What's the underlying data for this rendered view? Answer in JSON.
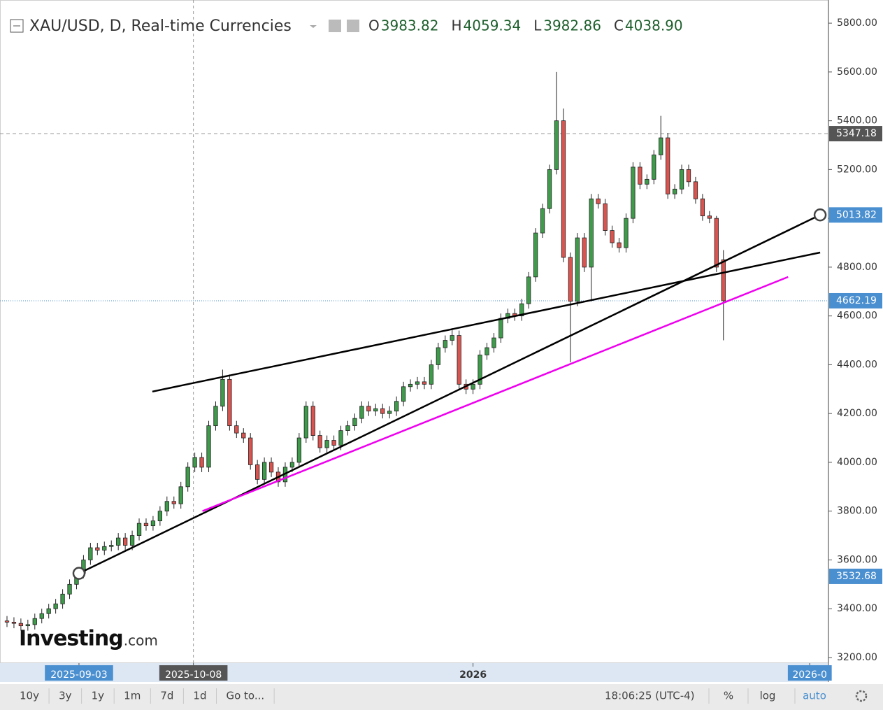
{
  "chart_data": {
    "type": "candlestick",
    "header": {
      "symbol": "XAU/USD, D, Real-time Currencies",
      "ohlc": [
        {
          "name": "O",
          "value": 3983.82
        },
        {
          "name": "H",
          "value": 4059.34
        },
        {
          "name": "L",
          "value": 3982.86
        },
        {
          "name": "C",
          "value": 4038.9,
          "label": "4038.90"
        }
      ]
    },
    "open": [
      3350,
      3345,
      3340,
      3330,
      3335,
      3360,
      3380,
      3400,
      3420,
      3460,
      3500,
      3545,
      3600,
      3650,
      3640,
      3655,
      3660,
      3690,
      3660,
      3700,
      3750,
      3740,
      3760,
      3800,
      3840,
      3830,
      3900,
      3980,
      4020,
      3980,
      4150,
      4230,
      4340,
      4150,
      4120,
      4100,
      3990,
      3930,
      4000,
      3960,
      3920,
      3980,
      4000,
      4100,
      4230,
      4110,
      4060,
      4090,
      4070,
      4130,
      4150,
      4180,
      4230,
      4210,
      4220,
      4200,
      4210,
      4250,
      4310,
      4320,
      4330,
      4320,
      4400,
      4470,
      4500,
      4520,
      4320,
      4300,
      4320,
      4440,
      4470,
      4510,
      4590,
      4610,
      4600,
      4650,
      4760,
      4940,
      5040,
      5200,
      5400,
      4840,
      4660,
      4920,
      4800,
      5080,
      5060,
      4950,
      4900,
      4880,
      5000,
      5210,
      5140,
      5160,
      5260,
      5330,
      5100,
      5120,
      5200,
      5150,
      5080,
      5010,
      5000,
      4830
    ],
    "high": [
      3370,
      3365,
      3360,
      3355,
      3380,
      3400,
      3420,
      3440,
      3480,
      3520,
      3565,
      3620,
      3670,
      3670,
      3675,
      3680,
      3710,
      3710,
      3720,
      3770,
      3770,
      3780,
      3820,
      3860,
      3860,
      3920,
      4000,
      4040,
      4040,
      4170,
      4250,
      4380,
      4360,
      4170,
      4140,
      4120,
      4010,
      4020,
      4020,
      3980,
      4000,
      4020,
      4120,
      4250,
      4250,
      4130,
      4110,
      4110,
      4150,
      4170,
      4200,
      4250,
      4250,
      4240,
      4240,
      4230,
      4270,
      4330,
      4340,
      4350,
      4350,
      4420,
      4490,
      4520,
      4550,
      4540,
      4340,
      4340,
      4460,
      4490,
      4530,
      4610,
      4630,
      4630,
      4670,
      4780,
      4960,
      5060,
      5220,
      5600,
      5450,
      4860,
      4940,
      4940,
      5100,
      5100,
      5080,
      4970,
      4920,
      5020,
      5230,
      5230,
      5180,
      5280,
      5420,
      5350,
      5140,
      5220,
      5220,
      5170,
      5100,
      5030,
      5010,
      4870
    ],
    "low": [
      3325,
      3320,
      3310,
      3310,
      3315,
      3340,
      3360,
      3380,
      3400,
      3440,
      3480,
      3525,
      3580,
      3620,
      3620,
      3635,
      3640,
      3640,
      3640,
      3680,
      3720,
      3720,
      3740,
      3780,
      3810,
      3810,
      3880,
      3960,
      3960,
      3960,
      4130,
      4210,
      4130,
      4100,
      4080,
      3970,
      3910,
      3910,
      3940,
      3900,
      3900,
      3960,
      3980,
      4080,
      4090,
      4040,
      4040,
      4050,
      4050,
      4110,
      4130,
      4160,
      4190,
      4190,
      4180,
      4180,
      4190,
      4230,
      4290,
      4300,
      4300,
      4300,
      4380,
      4450,
      4480,
      4300,
      4280,
      4280,
      4300,
      4420,
      4450,
      4490,
      4570,
      4580,
      4580,
      4630,
      4740,
      4920,
      5020,
      5180,
      4820,
      4410,
      4640,
      4780,
      4660,
      5040,
      4930,
      4880,
      4860,
      4860,
      4980,
      5120,
      5120,
      5140,
      5240,
      5080,
      5080,
      5100,
      5130,
      5060,
      4990,
      4980,
      4780,
      4500
    ],
    "close": [
      3345,
      3340,
      3330,
      3335,
      3360,
      3380,
      3400,
      3420,
      3460,
      3500,
      3545,
      3600,
      3650,
      3640,
      3655,
      3660,
      3690,
      3660,
      3700,
      3750,
      3740,
      3760,
      3800,
      3840,
      3830,
      3900,
      3980,
      4020,
      3980,
      4150,
      4230,
      4340,
      4150,
      4120,
      4100,
      3990,
      3930,
      4000,
      3960,
      3920,
      3980,
      4000,
      4100,
      4230,
      4110,
      4060,
      4090,
      4070,
      4130,
      4150,
      4180,
      4230,
      4210,
      4220,
      4200,
      4210,
      4250,
      4310,
      4320,
      4330,
      4320,
      4400,
      4470,
      4500,
      4520,
      4320,
      4300,
      4320,
      4440,
      4470,
      4510,
      4590,
      4610,
      4600,
      4650,
      4760,
      4940,
      5040,
      5200,
      5400,
      4840,
      4660,
      4920,
      4800,
      5080,
      5060,
      4950,
      4900,
      4880,
      5000,
      5210,
      5140,
      5160,
      5260,
      5330,
      5100,
      5120,
      5200,
      5150,
      5080,
      5010,
      5000,
      4800,
      4662
    ],
    "up_color": "#3d9b4a",
    "down_color": "#d9534f",
    "xlim": [
      -0.2,
      118.1
    ],
    "xticks": [
      {
        "value": 10.35,
        "label": "2025-09-03"
      },
      {
        "value": 26.8,
        "label": "2025-10-08"
      },
      {
        "value": 67,
        "label": "2026"
      },
      {
        "value": 115.4,
        "label": "2026-0"
      }
    ],
    "ylim": [
      3177,
      5872
    ],
    "yticks": [
      {
        "value": 3200,
        "label": "3200.00"
      },
      {
        "value": 3400,
        "label": "3400.00"
      },
      {
        "value": 3600,
        "label": "3600.00"
      },
      {
        "value": 3800,
        "label": "3800.00"
      },
      {
        "value": 4000,
        "label": "4000.00"
      },
      {
        "value": 4200,
        "label": "4200.00"
      },
      {
        "value": 4400,
        "label": "4400.00"
      },
      {
        "value": 4600,
        "label": "4600.00"
      },
      {
        "value": 4800,
        "label": "4800.00"
      },
      {
        "value": 5000,
        "label": "5000.00"
      },
      {
        "value": 5200,
        "label": "5200.00"
      },
      {
        "value": 5400,
        "label": "5400.00"
      },
      {
        "value": 5600,
        "label": "5600.00"
      },
      {
        "value": 5800,
        "label": "5800.00"
      }
    ],
    "price_tags": [
      {
        "value": 5347.18,
        "color": "#555555",
        "line": "dashed"
      },
      {
        "value": 5013.82,
        "color": "#4a8fd0"
      },
      {
        "value": 4662.19,
        "color": "#4a8fd0",
        "line": "dotted"
      },
      {
        "value": 3532.68,
        "color": "#4a8fd0"
      }
    ],
    "trendlines": [
      {
        "color": "#000000",
        "x": [
          10.35,
          116.9
        ],
        "y": [
          3545,
          5014
        ],
        "handles": true
      },
      {
        "color": "#000000",
        "x": [
          20.9,
          116.9
        ],
        "y": [
          4290,
          4860
        ]
      },
      {
        "color": "#ee00ee",
        "x": [
          28.1,
          112.3
        ],
        "y": [
          3800,
          4760
        ]
      }
    ],
    "crosshair_x": 26.8,
    "watermark": [
      "Investing",
      ".com"
    ],
    "toolbar": {
      "ranges": [
        "10y",
        "3y",
        "1y",
        "1m",
        "7d",
        "1d",
        "Go to..."
      ],
      "time": "18:06:25 (UTC-4)",
      "options": [
        "%",
        "log",
        "auto"
      ]
    }
  }
}
